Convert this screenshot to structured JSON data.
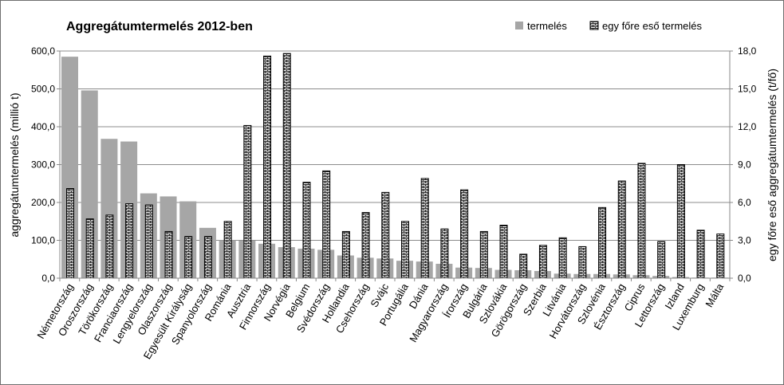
{
  "chart_data": {
    "type": "bar",
    "title": "Aggregátumtermelés 2012-ben",
    "ylabel": "aggregátumtermelés (millió t)",
    "y2label": "egy főre eső aggregátumtermelés (t/fő)",
    "ylim": [
      0,
      600
    ],
    "y2lim": [
      0,
      18
    ],
    "yticks": [
      "0,0",
      "100,0",
      "200,0",
      "300,0",
      "400,0",
      "500,0",
      "600,0"
    ],
    "y2ticks": [
      "0,0",
      "3,0",
      "6,0",
      "9,0",
      "12,0",
      "15,0",
      "18,0"
    ],
    "legend_position": "top-right",
    "categories": [
      "Németország",
      "Oroszország",
      "Törökország",
      "Franciaország",
      "Lengyelország",
      "Olaszország",
      "Egyesült Királyság",
      "Spanyolország",
      "Románia",
      "Ausztria",
      "Finnország",
      "Norvégia",
      "Belgium",
      "Svédország",
      "Hollandia",
      "Csehország",
      "Svájc",
      "Portugália",
      "Dánia",
      "Magyarország",
      "Írország",
      "Bulgária",
      "Szlovákia",
      "Görögország",
      "Szerbia",
      "Litvánia",
      "Horvátország",
      "Szlovénia",
      "Észtország",
      "Ciprus",
      "Lettország",
      "Izland",
      "Luxemburg",
      "Málta"
    ],
    "series": [
      {
        "name": "termelés",
        "axis": "left",
        "color": "#a6a6a6",
        "values": [
          585,
          496,
          368,
          361,
          224,
          216,
          203,
          133,
          100,
          99,
          91,
          82,
          78,
          75,
          60,
          54,
          52,
          46,
          44,
          38,
          28,
          27,
          22,
          21,
          19,
          12,
          11,
          11,
          10,
          8,
          6,
          3,
          1.5,
          1.5
        ]
      },
      {
        "name": "egy főre eső termelés",
        "axis": "right",
        "color": "#ffffff",
        "pattern": "brick",
        "values": [
          7.1,
          4.7,
          5.0,
          5.9,
          5.8,
          3.7,
          3.3,
          3.3,
          4.5,
          12.1,
          17.6,
          17.8,
          7.6,
          8.5,
          3.7,
          5.2,
          6.8,
          4.5,
          7.9,
          3.9,
          7.0,
          3.7,
          4.2,
          1.9,
          2.6,
          3.2,
          2.5,
          5.6,
          7.7,
          9.1,
          2.9,
          9.0,
          3.8,
          3.5
        ]
      }
    ]
  }
}
